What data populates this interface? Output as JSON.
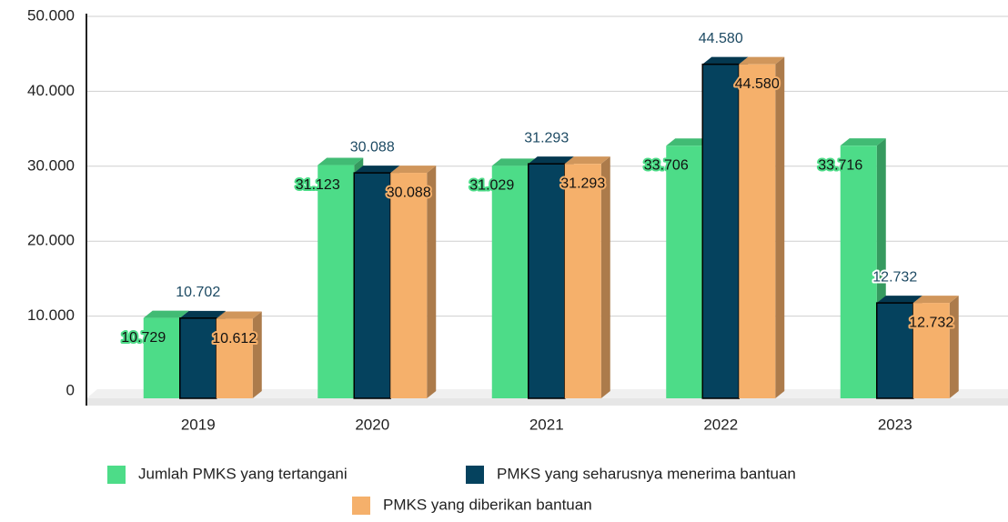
{
  "chart_data": {
    "type": "bar3d",
    "categories": [
      "2019",
      "2020",
      "2021",
      "2022",
      "2023"
    ],
    "series": [
      {
        "name": "Jumlah PMKS yang tertangani",
        "color": "#4ddc88",
        "values": [
          10729,
          31123,
          31029,
          33706,
          33716
        ],
        "value_labels": [
          "10.729",
          "31.123",
          "31.029",
          "33.706",
          "33.716"
        ]
      },
      {
        "name": "PMKS yang seharusnya menerima bantuan",
        "color": "#05425e",
        "values": [
          10702,
          30088,
          31293,
          44580,
          12732
        ],
        "value_labels": [
          "10.702",
          "30.088",
          "31.293",
          "44.580",
          "12.732"
        ]
      },
      {
        "name": "PMKS yang diberikan bantuan",
        "color": "#f5b06b",
        "values": [
          10612,
          30088,
          31293,
          44580,
          12732
        ],
        "value_labels": [
          "10.612",
          "30.088",
          "31.293",
          "44.580",
          "12.732"
        ]
      }
    ],
    "ylim": [
      0,
      50000
    ],
    "yticks": [
      0,
      {
        "value": 10000,
        "label": "10.000"
      },
      {
        "value": 20000,
        "label": "20.000"
      },
      {
        "value": 30000,
        "label": "30.000"
      },
      {
        "value": 40000,
        "label": "40.000"
      },
      {
        "value": 50000,
        "label": "50.000"
      }
    ],
    "grid": true,
    "legend": "bottom"
  }
}
